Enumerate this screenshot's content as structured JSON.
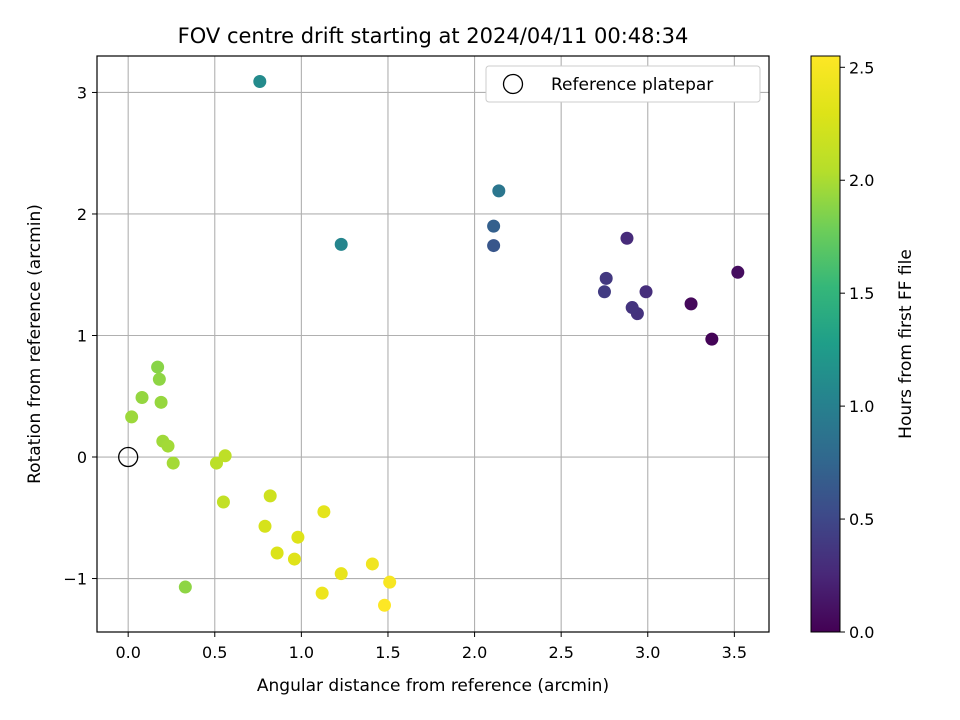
{
  "chart_data": {
    "type": "scatter",
    "title": "FOV centre drift starting at 2024/04/11 00:48:34",
    "xlabel": "Angular distance from reference (arcmin)",
    "ylabel": "Rotation from reference (arcmin)",
    "xlim": [
      -0.18,
      3.7
    ],
    "ylim": [
      -1.44,
      3.3
    ],
    "xticks": [
      0.0,
      0.5,
      1.0,
      1.5,
      2.0,
      2.5,
      3.0,
      3.5
    ],
    "xtick_labels": [
      "0.0",
      "0.5",
      "1.0",
      "1.5",
      "2.0",
      "2.5",
      "3.0",
      "3.5"
    ],
    "yticks": [
      -1,
      0,
      1,
      2,
      3
    ],
    "ytick_labels": [
      "−1",
      "0",
      "1",
      "2",
      "3"
    ],
    "grid": true,
    "colormap": "viridis",
    "colorbar": {
      "label": "Hours from first FF file",
      "range": [
        0.0,
        2.55
      ],
      "ticks": [
        0.0,
        0.5,
        1.0,
        1.5,
        2.0,
        2.5
      ],
      "tick_labels": [
        "0.0",
        "0.5",
        "1.0",
        "1.5",
        "2.0",
        "2.5"
      ]
    },
    "legend": {
      "placement": "top-right",
      "entries": [
        {
          "label": "Reference platepar",
          "marker": "open-circle",
          "x": 0.0,
          "y": 0.0
        }
      ]
    },
    "points": [
      {
        "x": 3.52,
        "y": 1.52,
        "c": 0.08
      },
      {
        "x": 3.37,
        "y": 0.97,
        "c": 0.02
      },
      {
        "x": 3.25,
        "y": 1.26,
        "c": 0.05
      },
      {
        "x": 2.99,
        "y": 1.36,
        "c": 0.3
      },
      {
        "x": 2.94,
        "y": 1.18,
        "c": 0.33
      },
      {
        "x": 2.91,
        "y": 1.23,
        "c": 0.35
      },
      {
        "x": 2.88,
        "y": 1.8,
        "c": 0.28
      },
      {
        "x": 2.76,
        "y": 1.47,
        "c": 0.38
      },
      {
        "x": 2.75,
        "y": 1.36,
        "c": 0.4
      },
      {
        "x": 2.14,
        "y": 2.19,
        "c": 0.9
      },
      {
        "x": 2.11,
        "y": 1.9,
        "c": 0.7
      },
      {
        "x": 2.11,
        "y": 1.74,
        "c": 0.62
      },
      {
        "x": 1.23,
        "y": 1.75,
        "c": 1.05
      },
      {
        "x": 0.76,
        "y": 3.09,
        "c": 1.1
      },
      {
        "x": 0.17,
        "y": 0.74,
        "c": 1.88
      },
      {
        "x": 0.18,
        "y": 0.64,
        "c": 1.9
      },
      {
        "x": 0.08,
        "y": 0.49,
        "c": 1.92
      },
      {
        "x": 0.19,
        "y": 0.45,
        "c": 1.93
      },
      {
        "x": 0.02,
        "y": 0.33,
        "c": 1.95
      },
      {
        "x": 0.2,
        "y": 0.13,
        "c": 1.96
      },
      {
        "x": 0.23,
        "y": 0.09,
        "c": 1.97
      },
      {
        "x": 0.26,
        "y": -0.05,
        "c": 1.98
      },
      {
        "x": 0.33,
        "y": -1.07,
        "c": 1.9
      },
      {
        "x": 0.51,
        "y": -0.05,
        "c": 2.08
      },
      {
        "x": 0.56,
        "y": 0.01,
        "c": 2.1
      },
      {
        "x": 0.55,
        "y": -0.37,
        "c": 2.12
      },
      {
        "x": 0.82,
        "y": -0.32,
        "c": 2.2
      },
      {
        "x": 0.79,
        "y": -0.57,
        "c": 2.25
      },
      {
        "x": 0.98,
        "y": -0.66,
        "c": 2.3
      },
      {
        "x": 0.86,
        "y": -0.79,
        "c": 2.28
      },
      {
        "x": 0.96,
        "y": -0.84,
        "c": 2.32
      },
      {
        "x": 1.13,
        "y": -0.45,
        "c": 2.35
      },
      {
        "x": 1.23,
        "y": -0.96,
        "c": 2.38
      },
      {
        "x": 1.12,
        "y": -1.12,
        "c": 2.42
      },
      {
        "x": 1.41,
        "y": -0.88,
        "c": 2.45
      },
      {
        "x": 1.51,
        "y": -1.03,
        "c": 2.5
      },
      {
        "x": 1.48,
        "y": -1.22,
        "c": 2.55
      }
    ]
  }
}
